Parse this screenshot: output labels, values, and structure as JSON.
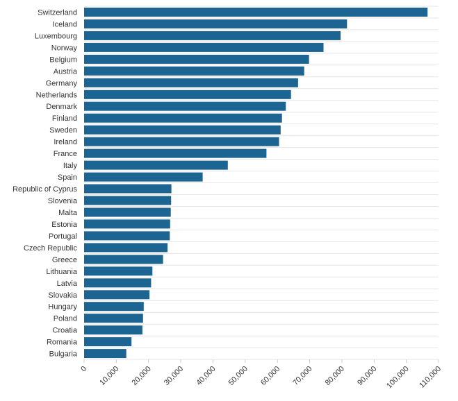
{
  "chart_data": {
    "type": "bar",
    "orientation": "horizontal",
    "title": "",
    "xlabel": "",
    "ylabel": "",
    "xlim": [
      0,
      110000
    ],
    "bar_color": "#1c6491",
    "grid": true,
    "categories": [
      "Switzerland",
      "Iceland",
      "Luxembourg",
      "Norway",
      "Belgium",
      "Austria",
      "Germany",
      "Netherlands",
      "Denmark",
      "Finland",
      "Sweden",
      "Ireland",
      "France",
      "Italy",
      "Spain",
      "Republic of Cyprus",
      "Slovenia",
      "Malta",
      "Estonia",
      "Portugal",
      "Czech Republic",
      "Greece",
      "Lithuania",
      "Latvia",
      "Slovakia",
      "Hungary",
      "Poland",
      "Croatia",
      "Romania",
      "Bulgaria"
    ],
    "values": [
      106600,
      81600,
      79600,
      74300,
      69800,
      68300,
      66400,
      64200,
      62600,
      61400,
      61000,
      60500,
      56600,
      44600,
      36800,
      27100,
      27000,
      26900,
      26700,
      26600,
      25900,
      24500,
      21200,
      20800,
      20300,
      18500,
      18300,
      18100,
      14700,
      13100
    ],
    "ticks": [
      0,
      10000,
      20000,
      30000,
      40000,
      50000,
      60000,
      70000,
      80000,
      90000,
      100000,
      110000
    ],
    "tick_labels": [
      "0",
      "10,000",
      "20,000",
      "30,000",
      "40,000",
      "50,000",
      "60,000",
      "70,000",
      "80,000",
      "90,000",
      "100,000",
      "110,000"
    ]
  }
}
